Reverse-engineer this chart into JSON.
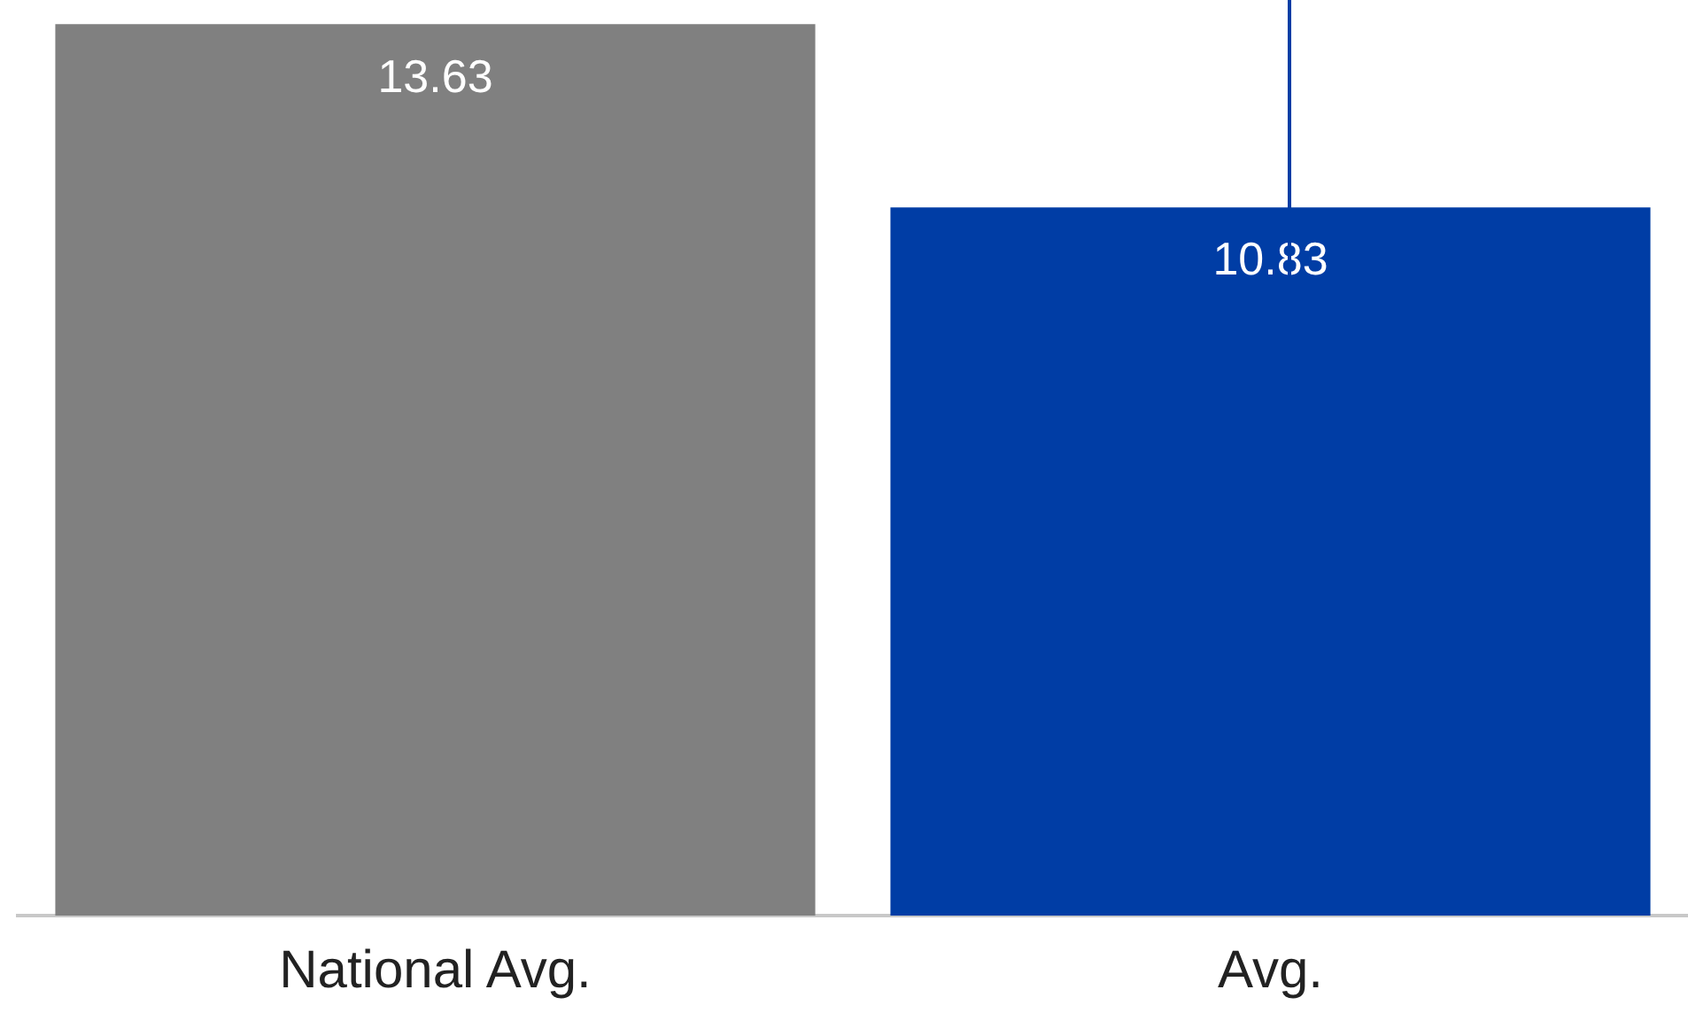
{
  "chart_data": {
    "type": "bar",
    "categories": [
      "National Avg.",
      "Avg."
    ],
    "values": [
      13.63,
      10.83
    ],
    "colors": [
      "#808080",
      "#003da5"
    ],
    "data_labels": true,
    "grid": false,
    "legend": false
  }
}
